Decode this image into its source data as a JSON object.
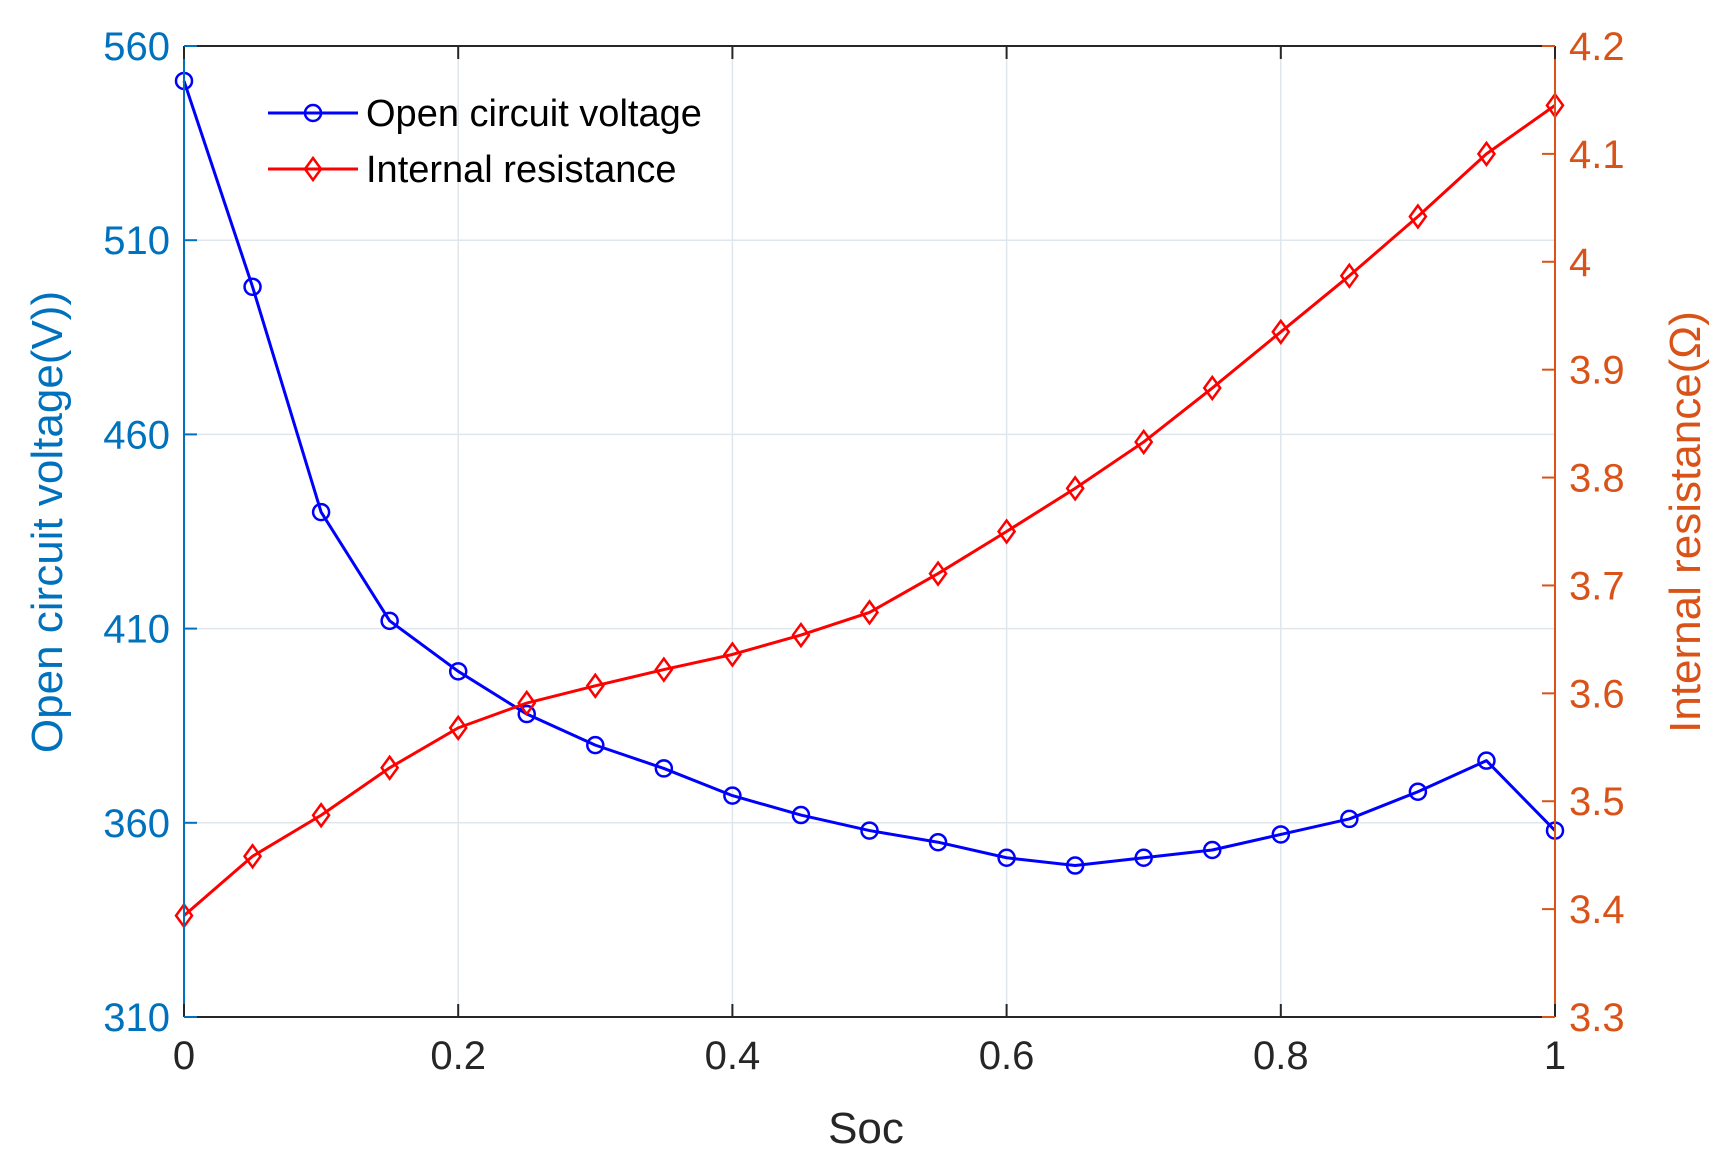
{
  "chart_data": {
    "type": "line",
    "title": "",
    "xlabel": "Soc",
    "ylabel": "Open circuit voltage(V))",
    "ylabel_right": "Internal resistance(Ω)",
    "xlim": [
      0,
      1
    ],
    "ylim": [
      310,
      560
    ],
    "ylim_right": [
      3.3,
      4.2
    ],
    "x_ticks": [
      0,
      0.2,
      0.4,
      0.6,
      0.8,
      1
    ],
    "x_tick_labels": [
      "0",
      "0.2",
      "0.4",
      "0.6",
      "0.8",
      "1"
    ],
    "y_ticks": [
      310,
      360,
      410,
      460,
      510,
      560
    ],
    "y_tick_labels": [
      "310",
      "360",
      "410",
      "460",
      "510",
      "560"
    ],
    "y_right_ticks": [
      3.3,
      3.4,
      3.5,
      3.6,
      3.7,
      3.8,
      3.9,
      4.0,
      4.1,
      4.2
    ],
    "y_right_tick_labels": [
      "3.3",
      "3.4",
      "3.5",
      "3.6",
      "3.7",
      "3.8",
      "3.9",
      "4",
      "4.1",
      "4.2"
    ],
    "grid": true,
    "legend_position": "top-left",
    "series": [
      {
        "name": "Open circuit voltage",
        "axis": "left",
        "color": "#0000ff",
        "marker": "circle",
        "x": [
          0,
          0.05,
          0.1,
          0.15,
          0.2,
          0.25,
          0.3,
          0.35,
          0.4,
          0.45,
          0.5,
          0.55,
          0.6,
          0.65,
          0.7,
          0.75,
          0.8,
          0.85,
          0.9,
          0.95,
          1
        ],
        "values": [
          551,
          498,
          440,
          412,
          399,
          388,
          380,
          374,
          367,
          362,
          358,
          355,
          351,
          349,
          351,
          353,
          357,
          361,
          368,
          376,
          358
        ]
      },
      {
        "name": "Internal resistance",
        "axis": "right",
        "color": "#ff0000",
        "marker": "diamond",
        "x": [
          0,
          0.05,
          0.1,
          0.15,
          0.2,
          0.25,
          0.3,
          0.35,
          0.4,
          0.45,
          0.5,
          0.55,
          0.6,
          0.65,
          0.7,
          0.75,
          0.8,
          0.85,
          0.9,
          0.95,
          1
        ],
        "values": [
          3.394,
          3.449,
          3.487,
          3.531,
          3.568,
          3.591,
          3.607,
          3.622,
          3.636,
          3.654,
          3.675,
          3.711,
          3.75,
          3.79,
          3.833,
          3.883,
          3.935,
          3.987,
          4.042,
          4.1,
          4.145
        ]
      }
    ],
    "colors": {
      "left_axis": "#0072bd",
      "right_axis": "#d95319",
      "grid": "#dfe6ec",
      "text": "#262626"
    }
  }
}
